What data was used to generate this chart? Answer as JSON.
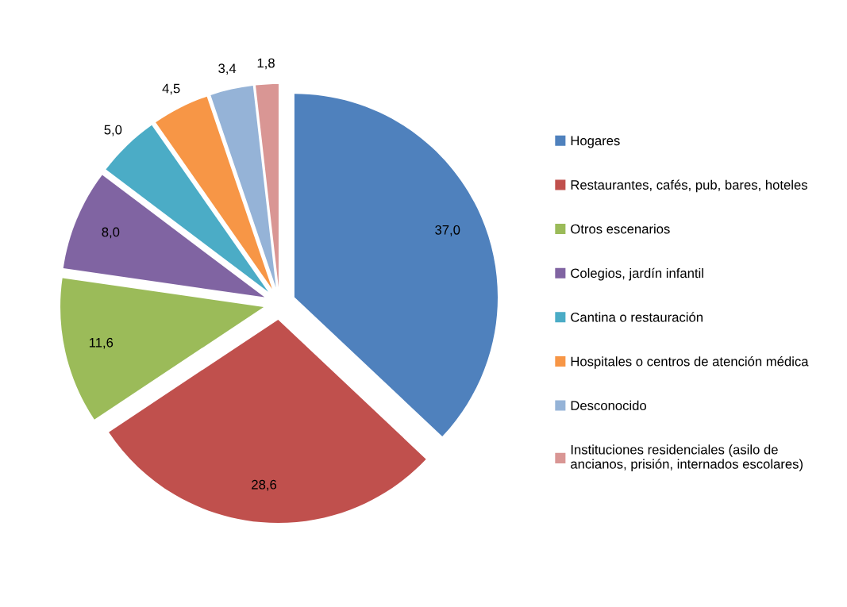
{
  "chart_data": {
    "type": "pie",
    "categories": [
      "Hogares",
      "Restaurantes, cafés, pub, bares, hoteles",
      "Otros escenarios",
      "Colegios, jardín infantil",
      "Cantina o restauración",
      "Hospitales o centros de atención médica",
      "Desconocido",
      "Instituciones residenciales (asilo de\nancianos, prisión, internados escolares)"
    ],
    "values": [
      37.0,
      28.6,
      11.6,
      8.0,
      5.0,
      4.5,
      3.4,
      1.8
    ],
    "value_labels": [
      "37,0",
      "28,6",
      "11,6",
      "8,0",
      "5,0",
      "4,5",
      "3,4",
      "1,8"
    ],
    "colors": [
      "#4f81bd",
      "#c0504d",
      "#9bbb59",
      "#8064a2",
      "#4bacc6",
      "#f79646",
      "#95b3d7",
      "#d99694"
    ],
    "legend": "right"
  }
}
